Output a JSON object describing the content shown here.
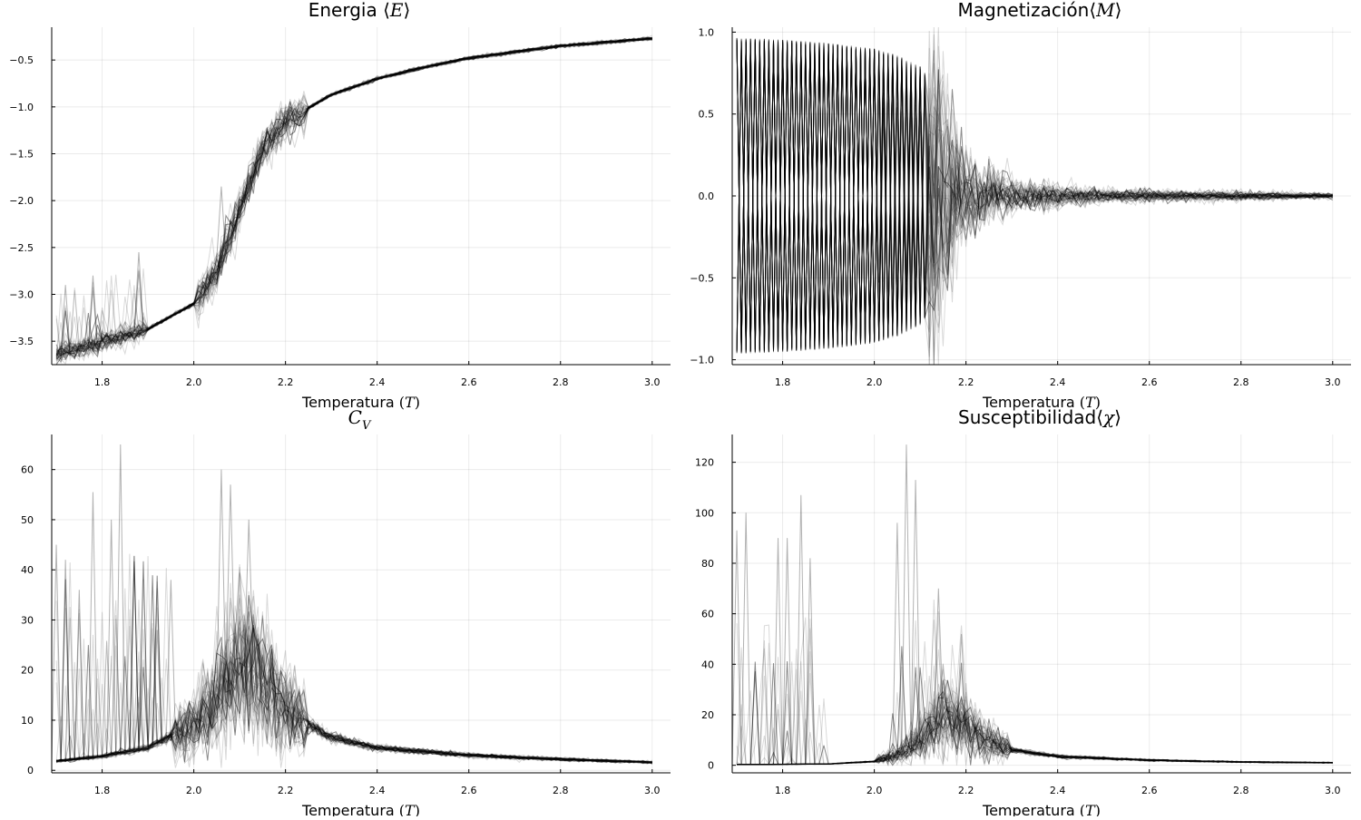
{
  "figure": {
    "background": "#ffffff",
    "line_color": "#000000",
    "grid": true,
    "legend": "none"
  },
  "chart_data": [
    {
      "id": "energia",
      "type": "line",
      "title": "Energia ⟨E⟩",
      "title_text": "Energia ",
      "title_math": "E",
      "xlabel": "Temperatura (T)",
      "xlabel_text": "Temperatura ",
      "xlabel_math": "T",
      "xlim": [
        1.69,
        3.04
      ],
      "ylim": [
        -3.75,
        -0.15
      ],
      "xticks": [
        1.8,
        2.0,
        2.2,
        2.4,
        2.6,
        2.8,
        3.0
      ],
      "xtick_labels": [
        "1.8",
        "2.0",
        "2.2",
        "2.4",
        "2.6",
        "2.8",
        "3.0"
      ],
      "yticks": [
        -3.5,
        -3.0,
        -2.5,
        -2.0,
        -1.5,
        -1.0,
        -0.5
      ],
      "ytick_labels": [
        "−3.5",
        "−3.0",
        "−2.5",
        "−2.0",
        "−1.5",
        "−1.0",
        "−0.5"
      ],
      "series_count": 50,
      "x": [
        1.7,
        1.8,
        1.9,
        2.0,
        2.05,
        2.1,
        2.15,
        2.2,
        2.3,
        2.4,
        2.5,
        2.6,
        2.8,
        3.0
      ],
      "mean_curve": [
        -3.64,
        -3.52,
        -3.37,
        -3.1,
        -2.75,
        -2.1,
        -1.45,
        -1.15,
        -0.87,
        -0.7,
        -0.58,
        -0.48,
        -0.35,
        -0.27
      ],
      "spikes": [
        {
          "x": 1.78,
          "y": -2.8
        },
        {
          "x": 1.88,
          "y": -2.55
        },
        {
          "x": 1.72,
          "y": -2.9
        },
        {
          "x": 2.06,
          "y": -1.85
        }
      ]
    },
    {
      "id": "magnetizacion",
      "type": "line",
      "title": "Magnetización⟨M⟩",
      "title_text": "Magnetización",
      "title_math": "M",
      "xlabel": "Temperatura (T)",
      "xlabel_text": "Temperatura ",
      "xlabel_math": "T",
      "xlim": [
        1.69,
        3.04
      ],
      "ylim": [
        -1.03,
        1.03
      ],
      "xticks": [
        1.8,
        2.0,
        2.2,
        2.4,
        2.6,
        2.8,
        3.0
      ],
      "xtick_labels": [
        "1.8",
        "2.0",
        "2.2",
        "2.4",
        "2.6",
        "2.8",
        "3.0"
      ],
      "yticks": [
        -1.0,
        -0.5,
        0.0,
        0.5,
        1.0
      ],
      "ytick_labels": [
        "−1.0",
        "−0.5",
        "0.0",
        "0.5",
        "1.0"
      ],
      "series_count": 50,
      "x": [
        1.7,
        1.8,
        1.9,
        2.0,
        2.05,
        2.1,
        2.13,
        2.17,
        2.2,
        2.3,
        2.5,
        3.0
      ],
      "envelope": [
        0.965,
        0.955,
        0.935,
        0.9,
        0.86,
        0.79,
        0.68,
        0.3,
        0.15,
        0.06,
        0.025,
        0.01
      ]
    },
    {
      "id": "cv",
      "type": "line",
      "title": "C_V",
      "title_text": "",
      "title_math": "C",
      "title_sub": "V",
      "xlabel": "Temperatura (T)",
      "xlabel_text": "Temperatura ",
      "xlabel_math": "T",
      "xlim": [
        1.69,
        3.04
      ],
      "ylim": [
        -0.5,
        67
      ],
      "xticks": [
        1.8,
        2.0,
        2.2,
        2.4,
        2.6,
        2.8,
        3.0
      ],
      "xtick_labels": [
        "1.8",
        "2.0",
        "2.2",
        "2.4",
        "2.6",
        "2.8",
        "3.0"
      ],
      "yticks": [
        0,
        10,
        20,
        30,
        40,
        50,
        60
      ],
      "ytick_labels": [
        "0",
        "10",
        "20",
        "30",
        "40",
        "50",
        "60"
      ],
      "series_count": 50,
      "x": [
        1.7,
        1.8,
        1.9,
        2.0,
        2.05,
        2.1,
        2.15,
        2.2,
        2.3,
        2.4,
        2.6,
        2.8,
        3.0
      ],
      "mean_curve": [
        1.8,
        2.8,
        4.5,
        9.0,
        14.0,
        22.0,
        18.0,
        12.0,
        6.5,
        4.5,
        3.0,
        2.2,
        1.6
      ],
      "spikes": [
        {
          "x": 1.84,
          "y": 65
        },
        {
          "x": 1.78,
          "y": 55.5
        },
        {
          "x": 1.82,
          "y": 50
        },
        {
          "x": 1.7,
          "y": 45
        },
        {
          "x": 1.72,
          "y": 42
        },
        {
          "x": 1.75,
          "y": 36
        },
        {
          "x": 2.06,
          "y": 60
        },
        {
          "x": 2.08,
          "y": 57
        },
        {
          "x": 2.12,
          "y": 50
        },
        {
          "x": 1.95,
          "y": 38
        },
        {
          "x": 1.92,
          "y": 28
        }
      ]
    },
    {
      "id": "susceptibilidad",
      "type": "line",
      "title": "Susceptibilidad⟨χ⟩",
      "title_text": "Susceptibilidad",
      "title_math": "χ",
      "xlabel": "Temperatura (T)",
      "xlabel_text": "Temperatura ",
      "xlabel_math": "T",
      "xlim": [
        1.69,
        3.04
      ],
      "ylim": [
        -3,
        131
      ],
      "xticks": [
        1.8,
        2.0,
        2.2,
        2.4,
        2.6,
        2.8,
        3.0
      ],
      "xtick_labels": [
        "1.8",
        "2.0",
        "2.2",
        "2.4",
        "2.6",
        "2.8",
        "3.0"
      ],
      "yticks": [
        0,
        20,
        40,
        60,
        80,
        100,
        120
      ],
      "ytick_labels": [
        "0",
        "20",
        "40",
        "60",
        "80",
        "100",
        "120"
      ],
      "series_count": 50,
      "x": [
        1.7,
        1.9,
        2.0,
        2.05,
        2.1,
        2.15,
        2.2,
        2.3,
        2.4,
        2.6,
        2.8,
        3.0
      ],
      "mean_curve": [
        0.3,
        0.5,
        1.5,
        4.0,
        10.0,
        20.0,
        14.0,
        6.0,
        3.5,
        2.0,
        1.3,
        1.0
      ],
      "spikes": [
        {
          "x": 2.07,
          "y": 127
        },
        {
          "x": 2.09,
          "y": 113
        },
        {
          "x": 1.84,
          "y": 107
        },
        {
          "x": 1.72,
          "y": 100
        },
        {
          "x": 1.7,
          "y": 93
        },
        {
          "x": 1.79,
          "y": 90
        },
        {
          "x": 1.81,
          "y": 90
        },
        {
          "x": 2.05,
          "y": 96
        },
        {
          "x": 1.86,
          "y": 82
        },
        {
          "x": 2.14,
          "y": 70
        },
        {
          "x": 2.19,
          "y": 52
        }
      ]
    }
  ]
}
